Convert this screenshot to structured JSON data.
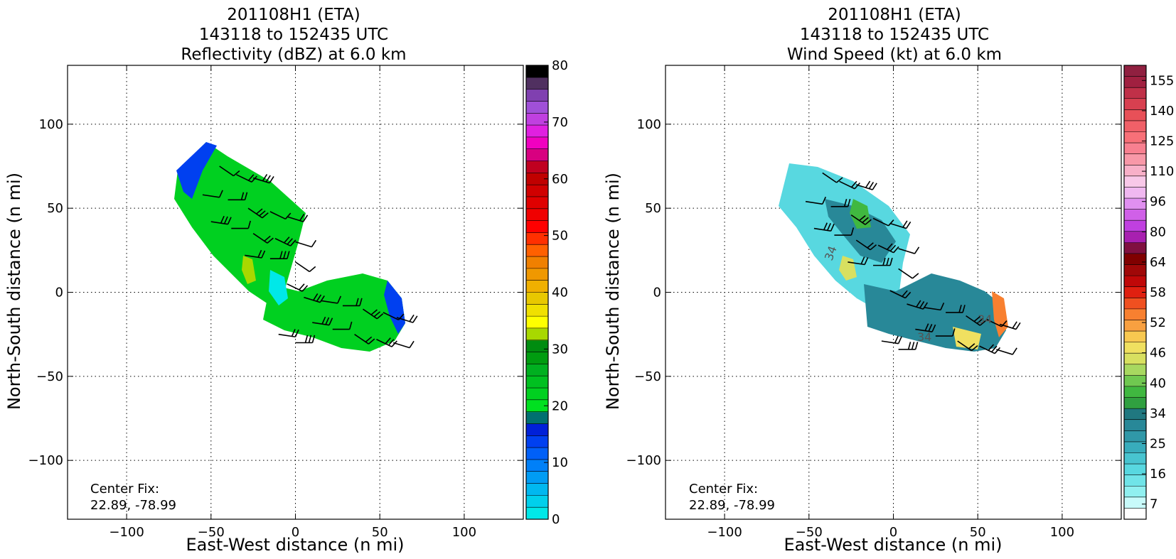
{
  "chart_data": [
    {
      "type": "heatmap",
      "title_lines": [
        "201108H1 (ETA)",
        "143118 to 152435 UTC",
        "Reflectivity (dBZ) at 6.0 km"
      ],
      "xlabel": "East-West distance (n mi)",
      "ylabel": "North-South distance (n mi)",
      "xlim": [
        -135,
        135
      ],
      "ylim": [
        -135,
        135
      ],
      "xticks": [
        -100,
        -50,
        0,
        50,
        100
      ],
      "yticks": [
        -100,
        -50,
        0,
        50,
        100
      ],
      "xtick_labels": [
        "−100",
        "−50",
        "0",
        "50",
        "100"
      ],
      "ytick_labels": [
        "−100",
        "−50",
        "0",
        "50",
        "100"
      ],
      "grid": true,
      "annotation_lines": [
        "Center Fix:",
        "22.89, -78.99"
      ],
      "colorbar": {
        "min": 0,
        "max": 80,
        "tick_values": [
          0,
          10,
          20,
          30,
          40,
          50,
          60,
          70,
          80
        ],
        "tick_labels": [
          "0",
          "10",
          "20",
          "30",
          "40",
          "50",
          "60",
          "70",
          "80"
        ],
        "colors": [
          "#00e8e8",
          "#00d0ec",
          "#00b8f0",
          "#009cf4",
          "#0080f8",
          "#0060f8",
          "#0040f0",
          "#0020d8",
          "#007070",
          "#00e020",
          "#00d020",
          "#00c020",
          "#00b020",
          "#009c10",
          "#008c10",
          "#a8d800",
          "#ffff00",
          "#f0e000",
          "#e8c800",
          "#f0b000",
          "#f09800",
          "#f08000",
          "#ff6000",
          "#ff3000",
          "#ff0000",
          "#f00000",
          "#e00000",
          "#d00000",
          "#c00000",
          "#c00020",
          "#d80080",
          "#f000c0",
          "#e020e0",
          "#c040e0",
          "#a050d8",
          "#8040b0",
          "#503060",
          "#000000"
        ]
      },
      "echo_region": "green-dominant reflectivity band (mostly 20–30 dBZ) with blue edges (5–15 dBZ) and yellow-green patches; band runs from about (-70, 88) to (68, -40) n mi",
      "wind_barbs": "wind barbs plotted over the echo region"
    },
    {
      "type": "heatmap",
      "title_lines": [
        "201108H1 (ETA)",
        "143118 to 152435 UTC",
        "Wind Speed (kt) at 6.0 km"
      ],
      "xlabel": "East-West distance (n mi)",
      "ylabel": "North-South distance (n mi)",
      "xlim": [
        -135,
        135
      ],
      "ylim": [
        -135,
        135
      ],
      "xticks": [
        -100,
        -50,
        0,
        50,
        100
      ],
      "yticks": [
        -100,
        -50,
        0,
        50,
        100
      ],
      "xtick_labels": [
        "−100",
        "−50",
        "0",
        "50",
        "100"
      ],
      "ytick_labels": [
        "−100",
        "−50",
        "0",
        "50",
        "100"
      ],
      "grid": true,
      "annotation_lines": [
        "Center Fix:",
        "22.89, -78.99"
      ],
      "contour_labels": [
        "34",
        "34",
        "34"
      ],
      "colorbar": {
        "tick_labels": [
          "7",
          "16",
          "25",
          "34",
          "40",
          "46",
          "52",
          "58",
          "64",
          "80",
          "96",
          "110",
          "125",
          "140",
          "155"
        ],
        "colors": [
          "#ffffff",
          "#c8fafa",
          "#90f0f0",
          "#70e4e8",
          "#58d8e0",
          "#48c4d0",
          "#38acbc",
          "#3098a8",
          "#288898",
          "#207880",
          "#30a040",
          "#40b840",
          "#70c850",
          "#a8d860",
          "#d8e060",
          "#f0e060",
          "#f8c850",
          "#f8a040",
          "#f88030",
          "#f05020",
          "#e02010",
          "#c00808",
          "#a00808",
          "#800000",
          "#801040",
          "#a820b0",
          "#c040e0",
          "#d060e8",
          "#e090f0",
          "#f0b8f0",
          "#f8c8e8",
          "#f8b0c8",
          "#f898a8",
          "#f88090",
          "#f87078",
          "#f06068",
          "#e85058",
          "#d84050",
          "#c03048",
          "#a02040",
          "#902040"
        ]
      },
      "wind_barbs": "wind barbs plotted over the wind-speed region"
    }
  ]
}
